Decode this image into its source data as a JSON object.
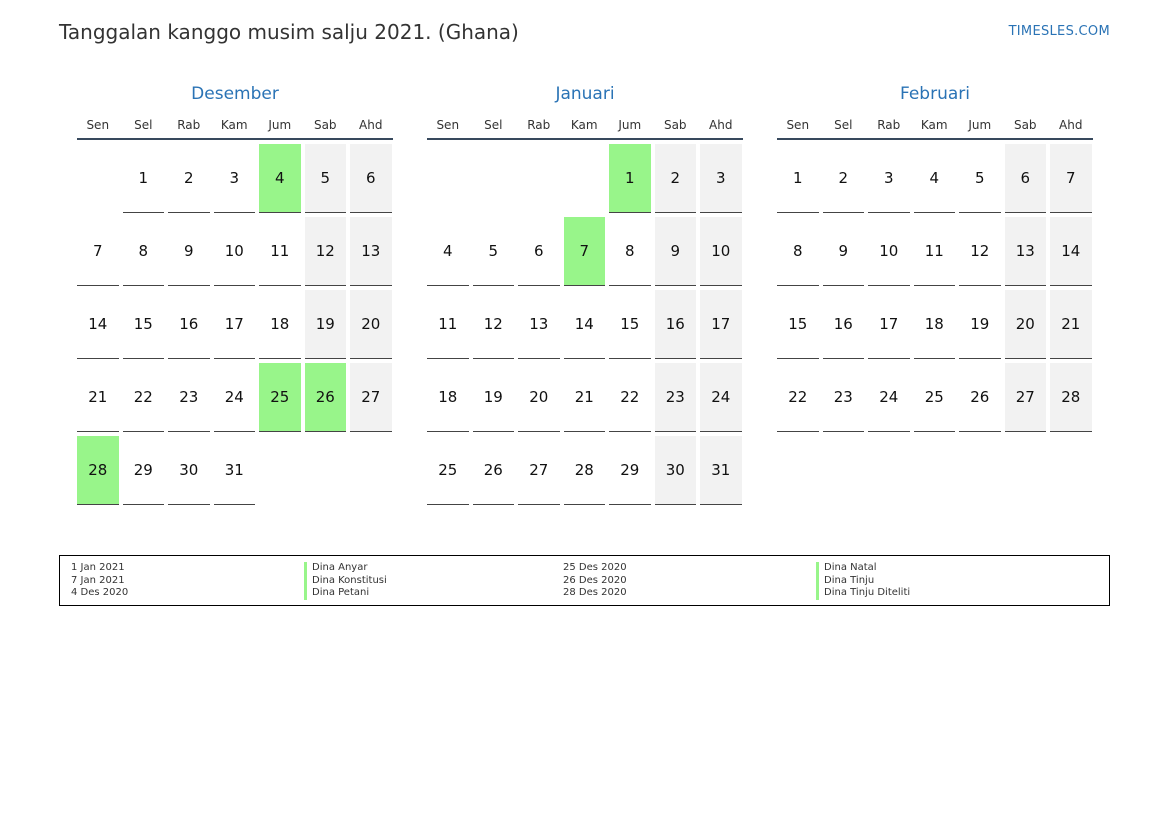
{
  "page": {
    "title": "Tanggalan kanggo musim salju 2021. (Ghana)",
    "site": "TIMESLES.COM"
  },
  "colors": {
    "accent": "#2a73b5",
    "holiday": "#98f58a",
    "weekend": "#f2f2f2",
    "rule": "#38495d"
  },
  "weekdays": [
    "Sen",
    "Sel",
    "Rab",
    "Kam",
    "Jum",
    "Sab",
    "Ahd"
  ],
  "months": [
    {
      "name": "Desember",
      "start_offset": 1,
      "days": 31,
      "holidays": [
        4,
        25,
        26,
        28
      ]
    },
    {
      "name": "Januari",
      "start_offset": 4,
      "days": 31,
      "holidays": [
        1,
        7
      ]
    },
    {
      "name": "Februari",
      "start_offset": 0,
      "days": 28,
      "holidays": []
    }
  ],
  "legend": [
    {
      "date": "1 Jan 2021",
      "name": "Dina Anyar"
    },
    {
      "date": "7 Jan 2021",
      "name": "Dina Konstitusi"
    },
    {
      "date": "4 Des 2020",
      "name": "Dina Petani"
    },
    {
      "date": "25 Des 2020",
      "name": "Dina Natal"
    },
    {
      "date": "26 Des 2020",
      "name": "Dina Tinju"
    },
    {
      "date": "28 Des 2020",
      "name": "Dina Tinju Diteliti"
    }
  ]
}
